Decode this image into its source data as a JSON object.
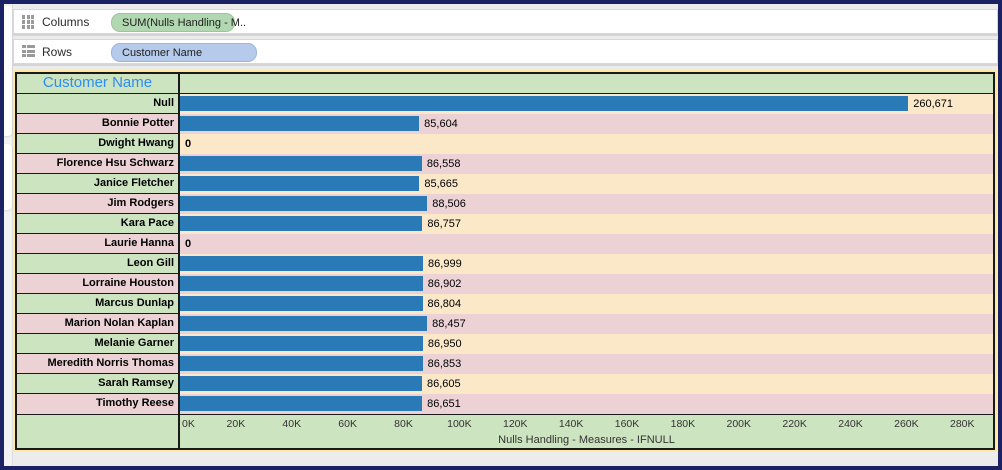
{
  "shelves": {
    "columns": {
      "label": "Columns",
      "pill": "SUM(Nulls Handling - M.."
    },
    "rows": {
      "label": "Rows",
      "pill": "Customer Name"
    }
  },
  "chart_data": {
    "type": "bar",
    "orientation": "horizontal",
    "row_header": "Customer Name",
    "xlabel": "Nulls Handling - Measures - IFNULL",
    "xlim": [
      0,
      291000
    ],
    "grid": false,
    "x_tick_labels": [
      "0K",
      "20K",
      "40K",
      "60K",
      "80K",
      "100K",
      "120K",
      "140K",
      "160K",
      "180K",
      "200K",
      "220K",
      "240K",
      "260K",
      "280K"
    ],
    "x_tick_values": [
      0,
      20000,
      40000,
      60000,
      80000,
      100000,
      120000,
      140000,
      160000,
      180000,
      200000,
      220000,
      240000,
      260000,
      280000
    ],
    "categories": [
      "Null",
      "Bonnie Potter",
      "Dwight Hwang",
      "Florence Hsu Schwarz",
      "Janice Fletcher",
      "Jim Rodgers",
      "Kara Pace",
      "Laurie Hanna",
      "Leon Gill",
      "Lorraine Houston",
      "Marcus Dunlap",
      "Marion Nolan Kaplan",
      "Melanie Garner",
      "Meredith Norris Thomas",
      "Sarah Ramsey",
      "Timothy Reese"
    ],
    "values": [
      260671,
      85604,
      0,
      86558,
      85665,
      88506,
      86757,
      0,
      86999,
      86902,
      86804,
      88457,
      86950,
      86853,
      86605,
      86651
    ],
    "value_labels": [
      "260,671",
      "85,604",
      "0",
      "86,558",
      "85,665",
      "88,506",
      "86,757",
      "0",
      "86,999",
      "86,902",
      "86,804",
      "88,457",
      "86,950",
      "86,853",
      "86,605",
      "86,651"
    ],
    "colors": {
      "bar": "#2b7ab8",
      "row_green": "#cde4c0",
      "row_pink": "#ecd2d5",
      "row_cream": "#fae8c8",
      "frame_yellow": "#ffe9a2",
      "window_border": "#1b2264",
      "header_text": "#2e8df2",
      "pill_green": "#b1d8b1",
      "pill_blue": "#b6caeb"
    }
  }
}
